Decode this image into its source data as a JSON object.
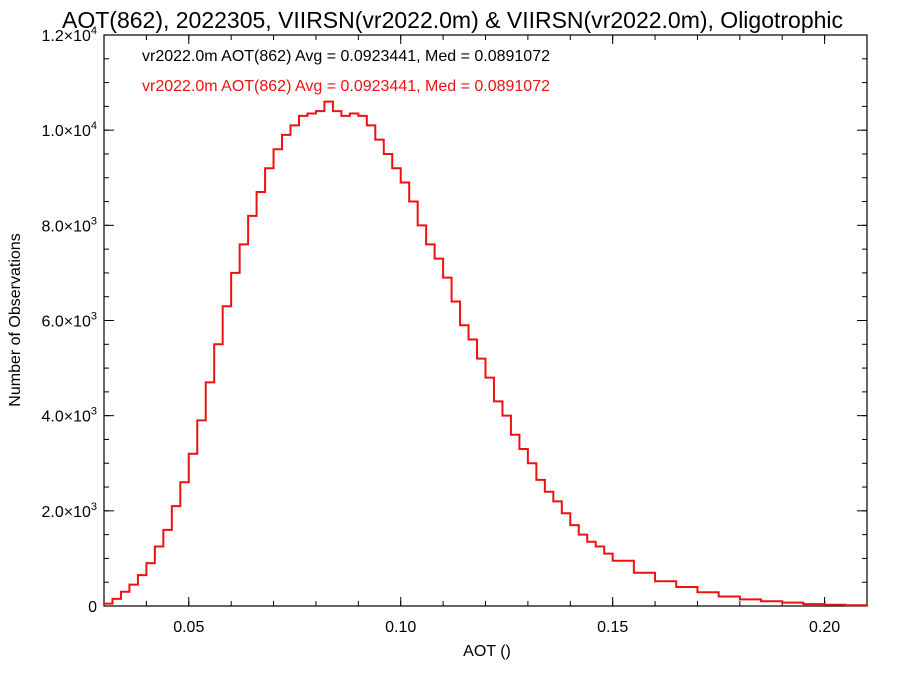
{
  "chart_data": {
    "type": "line",
    "title": "AOT(862), 2022305, VIIRSN(vr2022.0m) & VIIRSN(vr2022.0m), Oligotrophic",
    "xlabel": "AOT ()",
    "ylabel": "Number of Observations",
    "xlim": [
      0.03,
      0.21
    ],
    "ylim": [
      0,
      12000
    ],
    "xticks": [
      {
        "value": 0.05,
        "label": "0.05"
      },
      {
        "value": 0.1,
        "label": "0.10"
      },
      {
        "value": 0.15,
        "label": "0.15"
      },
      {
        "value": 0.2,
        "label": "0.20"
      }
    ],
    "yticks": [
      {
        "value": 0,
        "mant": "0",
        "exp": ""
      },
      {
        "value": 2000,
        "mant": "2.0×10",
        "exp": "3"
      },
      {
        "value": 4000,
        "mant": "4.0×10",
        "exp": "3"
      },
      {
        "value": 6000,
        "mant": "6.0×10",
        "exp": "3"
      },
      {
        "value": 8000,
        "mant": "8.0×10",
        "exp": "3"
      },
      {
        "value": 10000,
        "mant": "1.0×10",
        "exp": "4"
      },
      {
        "value": 12000,
        "mant": "1.2×10",
        "exp": "4"
      }
    ],
    "annotations": [
      {
        "text": "vr2022.0m AOT(862) Avg = 0.0923441, Med = 0.0891072",
        "color": "#000000"
      },
      {
        "text": "vr2022.0m AOT(862) Avg = 0.0923441, Med = 0.0891072",
        "color": "#ee1111"
      }
    ],
    "grid": false,
    "step": true,
    "series": [
      {
        "color": "#ee1111",
        "x": [
          0.03,
          0.032,
          0.034,
          0.036,
          0.038,
          0.04,
          0.042,
          0.044,
          0.046,
          0.048,
          0.05,
          0.052,
          0.054,
          0.056,
          0.058,
          0.06,
          0.062,
          0.064,
          0.066,
          0.068,
          0.07,
          0.072,
          0.074,
          0.076,
          0.078,
          0.08,
          0.082,
          0.084,
          0.086,
          0.088,
          0.09,
          0.092,
          0.094,
          0.096,
          0.098,
          0.1,
          0.102,
          0.104,
          0.106,
          0.108,
          0.11,
          0.112,
          0.114,
          0.116,
          0.118,
          0.12,
          0.122,
          0.124,
          0.126,
          0.128,
          0.13,
          0.132,
          0.134,
          0.136,
          0.138,
          0.14,
          0.142,
          0.144,
          0.146,
          0.148,
          0.15,
          0.155,
          0.16,
          0.165,
          0.17,
          0.175,
          0.18,
          0.185,
          0.19,
          0.195,
          0.2,
          0.205,
          0.21
        ],
        "y": [
          50,
          150,
          300,
          450,
          650,
          900,
          1250,
          1600,
          2100,
          2600,
          3200,
          3900,
          4700,
          5500,
          6300,
          7000,
          7600,
          8200,
          8700,
          9200,
          9600,
          9900,
          10100,
          10300,
          10350,
          10400,
          10600,
          10400,
          10300,
          10350,
          10300,
          10100,
          9800,
          9500,
          9200,
          8900,
          8500,
          8000,
          7600,
          7300,
          6900,
          6400,
          5900,
          5600,
          5200,
          4800,
          4300,
          4000,
          3600,
          3300,
          3000,
          2650,
          2400,
          2200,
          1950,
          1700,
          1500,
          1350,
          1250,
          1100,
          950,
          700,
          520,
          400,
          290,
          200,
          140,
          100,
          70,
          40,
          25,
          15,
          10
        ]
      }
    ]
  }
}
